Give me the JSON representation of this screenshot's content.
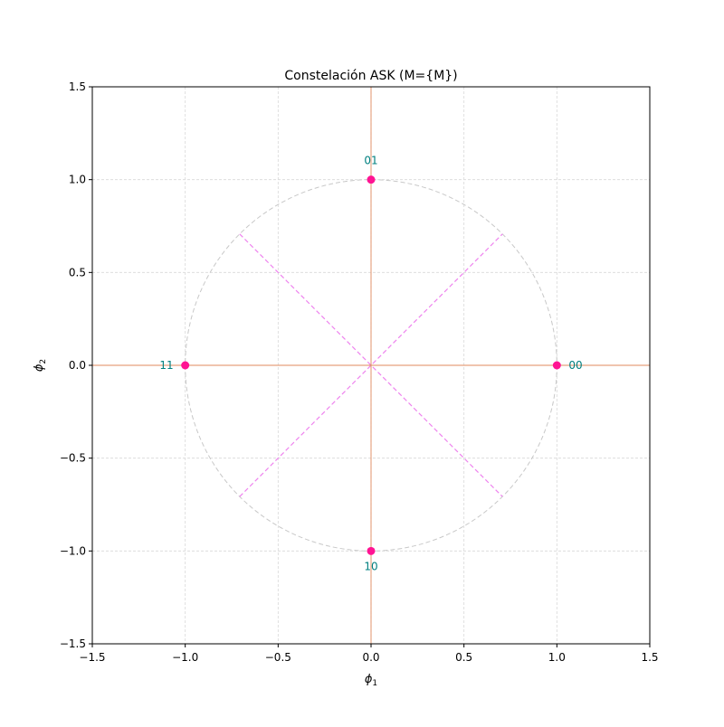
{
  "chart_data": {
    "type": "scatter",
    "title": "Constelación ASK (M={M})",
    "xlabel": {
      "symbol": "ϕ",
      "sub": "1"
    },
    "ylabel": {
      "symbol": "ϕ",
      "sub": "2"
    },
    "xlim": [
      -1.5,
      1.5
    ],
    "ylim": [
      -1.5,
      1.5
    ],
    "xticks": [
      -1.5,
      -1.0,
      -0.5,
      0.0,
      0.5,
      1.0,
      1.5
    ],
    "yticks": [
      -1.5,
      -1.0,
      -0.5,
      0.0,
      0.5,
      1.0,
      1.5
    ],
    "xtick_labels": [
      "−1.5",
      "−1.0",
      "−0.5",
      "0.0",
      "0.5",
      "1.0",
      "1.5"
    ],
    "ytick_labels": [
      "−1.5",
      "−1.0",
      "−0.5",
      "0.0",
      "0.5",
      "1.0",
      "1.5"
    ],
    "grid": true,
    "points": [
      {
        "x": 1.0,
        "y": 0.0,
        "label": "00",
        "label_pos": "right"
      },
      {
        "x": 0.0,
        "y": 1.0,
        "label": "01",
        "label_pos": "top"
      },
      {
        "x": -1.0,
        "y": 0.0,
        "label": "11",
        "label_pos": "left"
      },
      {
        "x": 0.0,
        "y": -1.0,
        "label": "10",
        "label_pos": "bottom"
      }
    ],
    "unit_circle": {
      "radius": 1.0,
      "style": "dashed"
    },
    "decision_boundaries": [
      {
        "x1": -0.7071,
        "y1": 0.7071,
        "x2": 0.7071,
        "y2": -0.7071
      },
      {
        "x1": -0.7071,
        "y1": -0.7071,
        "x2": 0.7071,
        "y2": 0.7071
      }
    ],
    "axes_lines_at_zero": true,
    "colors": {
      "point": "#ff1493",
      "label": "#008080",
      "zero_axes": "#e08a5e",
      "boundaries": "#ee82ee",
      "circle": "#c8c8c8",
      "grid": "#d9d9d9"
    }
  }
}
